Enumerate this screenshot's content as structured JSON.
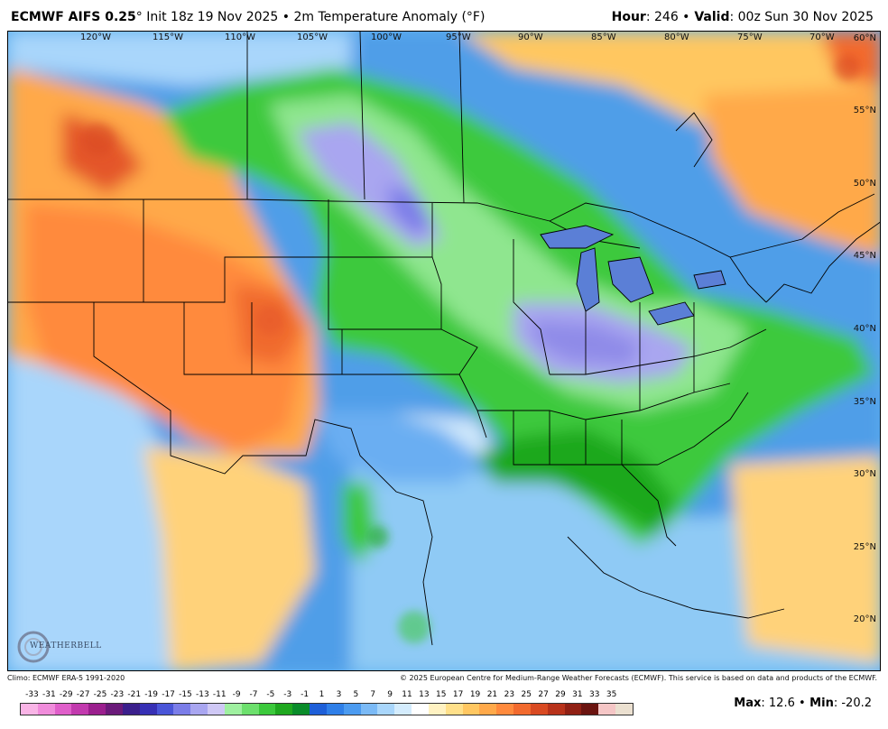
{
  "header": {
    "model": "ECMWF AIFS 0.25",
    "degree": "°",
    "init": " Init 18z 19 Nov 2025 • 2m Temperature Anomaly (°F)",
    "hour_label": "Hour",
    "hour_value": ": 246 •",
    "valid_label": " Valid",
    "valid_value": ": 00z Sun 30 Nov 2025"
  },
  "map": {
    "longitude_labels": [
      "120°W",
      "115°W",
      "110°W",
      "105°W",
      "100°W",
      "95°W",
      "90°W",
      "85°W",
      "80°W",
      "75°W",
      "70°W"
    ],
    "latitude_labels": [
      "60°N",
      "55°N",
      "50°N",
      "45°N",
      "40°N",
      "35°N",
      "30°N",
      "25°N",
      "20°N"
    ],
    "logo_text": "WEATHERBELL"
  },
  "footer": {
    "climo": "Climo: ECMWF ERA-5 1991-2020",
    "copyright": "© 2025 European Centre for Medium-Range Weather Forecasts (ECMWF). This service is based on data and products of the ECMWF."
  },
  "colorbar": {
    "labels": [
      "-33",
      "-31",
      "-29",
      "-27",
      "-25",
      "-23",
      "-21",
      "-19",
      "-17",
      "-15",
      "-13",
      "-11",
      "-9",
      "-7",
      "-5",
      "-3",
      "-1",
      "1",
      "3",
      "5",
      "7",
      "9",
      "11",
      "13",
      "15",
      "17",
      "19",
      "21",
      "23",
      "25",
      "27",
      "29",
      "31",
      "33",
      "35"
    ],
    "colors": [
      "#f9b4e6",
      "#f08cdb",
      "#e05fca",
      "#c23aae",
      "#9b1f8e",
      "#6b1a7a",
      "#3b1f8c",
      "#3730b5",
      "#4a55d8",
      "#7b7de8",
      "#a9a6f0",
      "#cfc8f5",
      "#9ff0a0",
      "#6de06d",
      "#3cc93c",
      "#1fa81f",
      "#0a8c2a",
      "#1e5fd8",
      "#2f7fe8",
      "#4c9bf0",
      "#7bbaf6",
      "#a9d6fb",
      "#d4ecfd",
      "#ffffff",
      "#fff2c2",
      "#ffe08a",
      "#ffc761",
      "#ffa94a",
      "#ff8a3d",
      "#f26a2e",
      "#d94a22",
      "#b8321a",
      "#902014",
      "#6b1410",
      "#f5c6c6",
      "#ebe0d0"
    ]
  },
  "stats": {
    "max_label": "Max",
    "max_value": ": 12.6 •",
    "min_label": " Min",
    "min_value": ": -20.2"
  }
}
